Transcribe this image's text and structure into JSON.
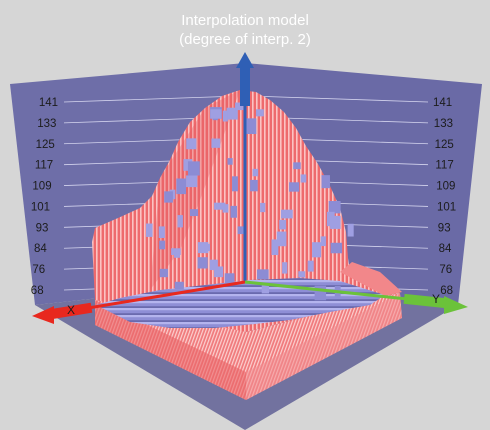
{
  "chart_data": {
    "type": "surface3d",
    "title_lines": [
      "Interpolation model",
      "(degree of interp. 2)"
    ],
    "z_ticks": [
      141,
      133,
      125,
      117,
      109,
      101,
      93,
      84,
      76,
      68
    ],
    "zlim": [
      60,
      141
    ],
    "axes": {
      "x": {
        "label": "X",
        "color": "#e8281e"
      },
      "y": {
        "label": "Y",
        "color": "#6bc23a"
      },
      "z": {
        "label": "",
        "color": "#2f5fb5"
      }
    },
    "grid": true,
    "colors": {
      "background": "#d6d6d6",
      "walls": "#6e6ea8",
      "floor": "#72729f",
      "surface": "#f0787a",
      "surface_highlight": "#f6b6b6",
      "cap": "#8e8ed4"
    }
  }
}
